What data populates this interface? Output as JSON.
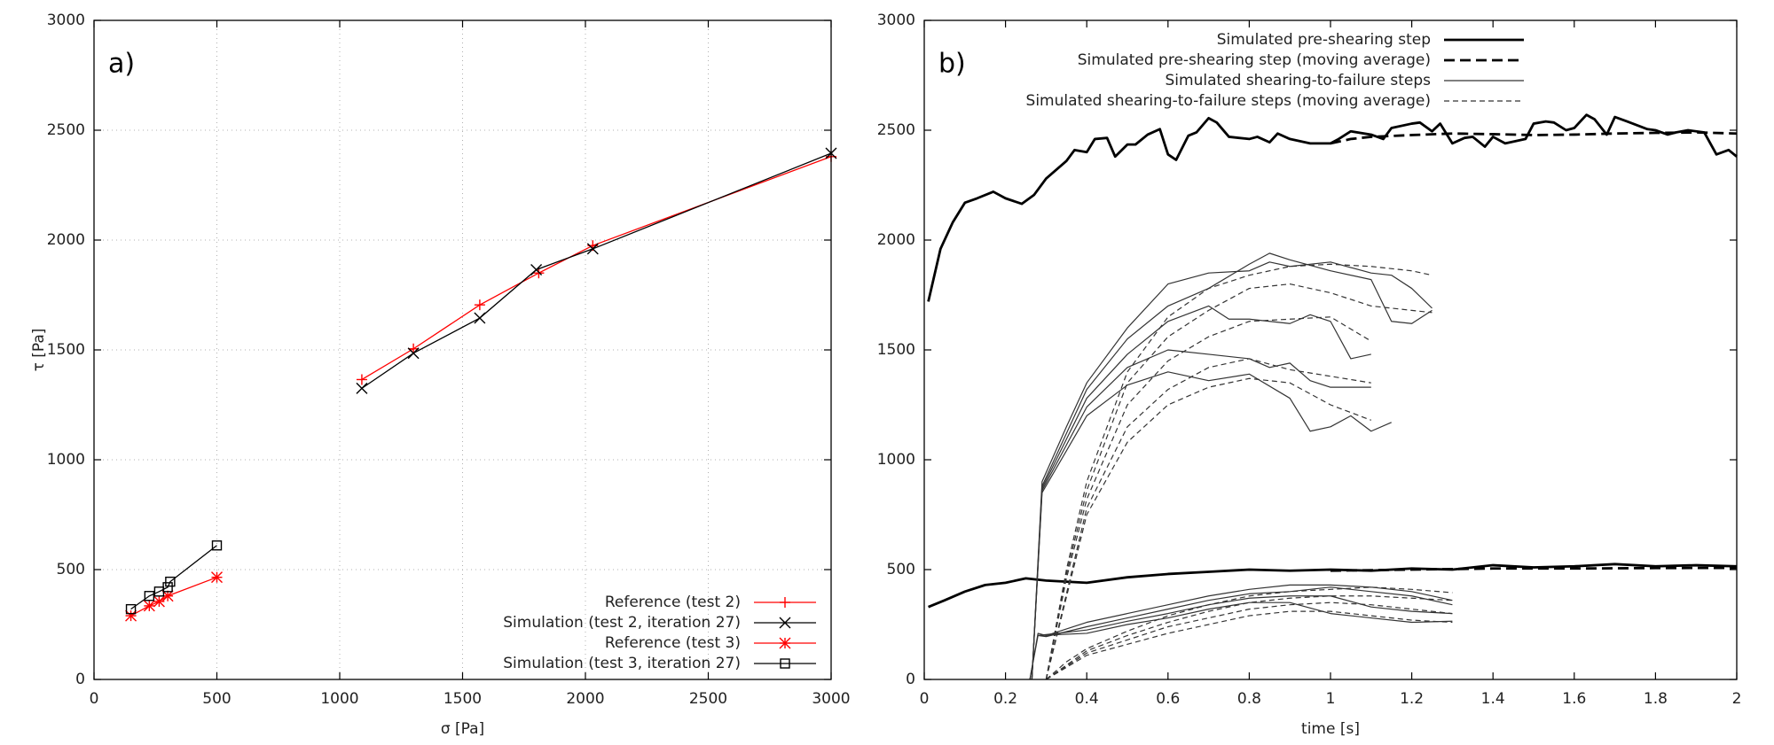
{
  "chart_data": [
    {
      "type": "line",
      "annotation": "a)",
      "x_label": "σ [Pa]",
      "y_label": "τ [Pa]",
      "xlim": [
        0,
        3000
      ],
      "xticks": [
        0,
        500,
        1000,
        1500,
        2000,
        2500,
        3000
      ],
      "ylim": [
        0,
        3000
      ],
      "yticks": [
        0,
        500,
        1000,
        1500,
        2000,
        2500,
        3000
      ],
      "grid": true,
      "legend": "bottom-right",
      "series": [
        {
          "name": "Reference (test 2)",
          "color": "#ff0000",
          "marker": "plus",
          "x": [
            1090,
            1300,
            1570,
            1810,
            2030,
            3000
          ],
          "values": [
            1365,
            1505,
            1705,
            1850,
            1975,
            2380
          ]
        },
        {
          "name": "Simulation (test 2, iteration 27)",
          "color": "#000000",
          "marker": "cross",
          "x": [
            1090,
            1300,
            1570,
            1800,
            2030,
            3000
          ],
          "values": [
            1325,
            1485,
            1645,
            1865,
            1960,
            2395
          ]
        },
        {
          "name": "Reference (test 3)",
          "color": "#ff0000",
          "marker": "star",
          "x": [
            150,
            225,
            265,
            300,
            500
          ],
          "values": [
            290,
            335,
            355,
            380,
            465
          ]
        },
        {
          "name": "Simulation (test 3, iteration 27)",
          "color": "#000000",
          "marker": "square",
          "x": [
            150,
            225,
            265,
            300,
            310,
            500
          ],
          "values": [
            320,
            380,
            400,
            420,
            445,
            610
          ]
        }
      ]
    },
    {
      "type": "line",
      "annotation": "b)",
      "x_label": "time [s]",
      "xlim": [
        0,
        2
      ],
      "xticks": [
        0,
        0.2,
        0.4,
        0.6,
        0.8,
        1,
        1.2,
        1.4,
        1.6,
        1.8,
        2
      ],
      "ylim": [
        0,
        3000
      ],
      "yticks": [
        0,
        500,
        1000,
        1500,
        2000,
        2500,
        3000
      ],
      "grid": false,
      "legend": "top-right",
      "series": [
        {
          "name": "Simulated pre-shearing step",
          "color": "#000000",
          "line_style": "solid",
          "line_weight": "bold",
          "lines": [
            {
              "x": [
                0.01,
                0.04,
                0.07,
                0.1,
                0.13,
                0.17,
                0.2,
                0.24,
                0.27,
                0.3,
                0.35,
                0.37,
                0.4,
                0.42,
                0.45,
                0.47,
                0.5,
                0.52,
                0.55,
                0.58,
                0.6,
                0.62,
                0.65,
                0.67,
                0.7,
                0.72,
                0.75,
                0.8,
                0.82,
                0.85,
                0.87,
                0.9,
                0.95,
                1.0,
                1.02,
                1.05,
                1.1,
                1.13,
                1.15,
                1.2,
                1.22,
                1.25,
                1.27,
                1.3,
                1.33,
                1.35,
                1.38,
                1.4,
                1.43,
                1.48,
                1.5,
                1.53,
                1.55,
                1.58,
                1.6,
                1.63,
                1.65,
                1.68,
                1.7,
                1.73,
                1.78,
                1.8,
                1.83,
                1.85,
                1.88,
                1.92,
                1.95,
                1.98,
                2.0
              ],
              "values": [
                1720,
                1960,
                2080,
                2170,
                2190,
                2220,
                2190,
                2165,
                2205,
                2280,
                2360,
                2410,
                2400,
                2460,
                2465,
                2380,
                2435,
                2435,
                2480,
                2505,
                2390,
                2365,
                2475,
                2490,
                2555,
                2535,
                2470,
                2460,
                2470,
                2445,
                2485,
                2460,
                2440,
                2440,
                2460,
                2495,
                2480,
                2460,
                2510,
                2530,
                2535,
                2495,
                2530,
                2440,
                2465,
                2470,
                2425,
                2470,
                2440,
                2460,
                2530,
                2540,
                2535,
                2500,
                2510,
                2570,
                2550,
                2480,
                2560,
                2540,
                2505,
                2500,
                2480,
                2490,
                2500,
                2490,
                2390,
                2410,
                2380
              ]
            },
            {
              "x": [
                0.01,
                0.05,
                0.1,
                0.15,
                0.2,
                0.25,
                0.3,
                0.35,
                0.4,
                0.5,
                0.6,
                0.7,
                0.8,
                0.9,
                1.0,
                1.1,
                1.2,
                1.3,
                1.4,
                1.5,
                1.6,
                1.7,
                1.8,
                1.9,
                2.0
              ],
              "values": [
                330,
                360,
                400,
                430,
                440,
                460,
                450,
                445,
                440,
                465,
                480,
                490,
                500,
                495,
                500,
                495,
                505,
                500,
                520,
                510,
                515,
                525,
                515,
                520,
                515
              ]
            }
          ]
        },
        {
          "name": "Simulated pre-shearing step (moving average)",
          "color": "#000000",
          "line_style": "dashed",
          "line_weight": "bold",
          "lines": [
            {
              "x": [
                1.0,
                1.05,
                1.1,
                1.2,
                1.3,
                1.4,
                1.5,
                1.6,
                1.7,
                1.8,
                1.9,
                2.0
              ],
              "values": [
                2440,
                2460,
                2470,
                2478,
                2485,
                2482,
                2478,
                2480,
                2485,
                2488,
                2490,
                2485
              ]
            },
            {
              "x": [
                1.0,
                1.2,
                1.4,
                1.6,
                1.8,
                2.0
              ],
              "values": [
                495,
                500,
                505,
                505,
                507,
                508
              ]
            }
          ]
        },
        {
          "name": "Simulated shearing-to-failure steps",
          "color": "#333333",
          "line_style": "solid",
          "line_weight": "normal",
          "lines": [
            {
              "x": [
                0.265,
                0.29,
                0.35,
                0.4,
                0.5,
                0.6,
                0.7,
                0.8,
                0.85,
                0.9,
                1.0,
                1.1,
                1.15,
                1.2,
                1.25
              ],
              "values": [
                0,
                900,
                1150,
                1350,
                1600,
                1800,
                1850,
                1860,
                1900,
                1880,
                1900,
                1850,
                1840,
                1780,
                1690
              ]
            },
            {
              "x": [
                0.265,
                0.29,
                0.4,
                0.5,
                0.6,
                0.7,
                0.8,
                0.85,
                0.9,
                1.0,
                1.1,
                1.15,
                1.2,
                1.25
              ],
              "values": [
                0,
                880,
                1320,
                1550,
                1700,
                1780,
                1890,
                1940,
                1910,
                1860,
                1820,
                1630,
                1620,
                1680
              ]
            },
            {
              "x": [
                0.265,
                0.29,
                0.4,
                0.5,
                0.6,
                0.7,
                0.75,
                0.8,
                0.9,
                0.95,
                1.0,
                1.05,
                1.1
              ],
              "values": [
                0,
                870,
                1280,
                1480,
                1630,
                1700,
                1640,
                1640,
                1620,
                1660,
                1630,
                1460,
                1480
              ]
            },
            {
              "x": [
                0.265,
                0.29,
                0.4,
                0.5,
                0.6,
                0.7,
                0.8,
                0.85,
                0.9,
                0.95,
                1.0,
                1.1
              ],
              "values": [
                0,
                860,
                1240,
                1420,
                1500,
                1480,
                1460,
                1420,
                1440,
                1360,
                1330,
                1330
              ]
            },
            {
              "x": [
                0.265,
                0.29,
                0.4,
                0.5,
                0.6,
                0.7,
                0.8,
                0.9,
                0.95,
                1.0,
                1.05,
                1.1,
                1.15
              ],
              "values": [
                0,
                850,
                1200,
                1340,
                1400,
                1360,
                1390,
                1280,
                1130,
                1150,
                1200,
                1130,
                1170
              ]
            },
            {
              "x": [
                0.26,
                0.28,
                0.3,
                0.4,
                0.5,
                0.6,
                0.7,
                0.8,
                0.9,
                1.0,
                1.1,
                1.2,
                1.3
              ],
              "values": [
                0,
                210,
                200,
                260,
                300,
                340,
                380,
                410,
                430,
                430,
                420,
                400,
                360
              ]
            },
            {
              "x": [
                0.26,
                0.28,
                0.3,
                0.4,
                0.5,
                0.6,
                0.7,
                0.8,
                0.9,
                1.0,
                1.1,
                1.2,
                1.3
              ],
              "values": [
                0,
                200,
                195,
                240,
                280,
                320,
                360,
                390,
                400,
                420,
                400,
                380,
                340
              ]
            },
            {
              "x": [
                0.28,
                0.4,
                0.5,
                0.6,
                0.7,
                0.8,
                0.9,
                1.0,
                1.1,
                1.2,
                1.3
              ],
              "values": [
                200,
                225,
                265,
                300,
                340,
                370,
                380,
                380,
                330,
                310,
                300
              ]
            },
            {
              "x": [
                0.28,
                0.4,
                0.5,
                0.6,
                0.7,
                0.8,
                0.9,
                1.0,
                1.1,
                1.2,
                1.3
              ],
              "values": [
                200,
                210,
                250,
                280,
                320,
                350,
                350,
                300,
                280,
                260,
                265
              ]
            }
          ]
        },
        {
          "name": "Simulated shearing-to-failure steps (moving average)",
          "color": "#333333",
          "line_style": "dashed",
          "line_weight": "normal",
          "lines": [
            {
              "x": [
                0.3,
                0.35,
                0.4,
                0.5,
                0.6,
                0.7,
                0.8,
                0.9,
                1.0,
                1.1,
                1.2,
                1.25
              ],
              "values": [
                0,
                500,
                900,
                1400,
                1650,
                1780,
                1840,
                1880,
                1890,
                1880,
                1860,
                1840
              ]
            },
            {
              "x": [
                0.3,
                0.35,
                0.4,
                0.5,
                0.6,
                0.7,
                0.8,
                0.9,
                1.0,
                1.1,
                1.25
              ],
              "values": [
                0,
                480,
                860,
                1350,
                1560,
                1680,
                1780,
                1800,
                1760,
                1700,
                1670
              ]
            },
            {
              "x": [
                0.3,
                0.35,
                0.4,
                0.5,
                0.6,
                0.7,
                0.8,
                0.9,
                1.0,
                1.1
              ],
              "values": [
                0,
                460,
                820,
                1250,
                1450,
                1560,
                1630,
                1640,
                1650,
                1540
              ]
            },
            {
              "x": [
                0.3,
                0.4,
                0.5,
                0.6,
                0.7,
                0.8,
                0.9,
                1.0,
                1.1
              ],
              "values": [
                0,
                780,
                1150,
                1320,
                1420,
                1460,
                1410,
                1380,
                1350
              ]
            },
            {
              "x": [
                0.3,
                0.4,
                0.5,
                0.6,
                0.7,
                0.8,
                0.9,
                1.0,
                1.1
              ],
              "values": [
                0,
                750,
                1080,
                1250,
                1330,
                1370,
                1350,
                1250,
                1180
              ]
            },
            {
              "x": [
                0.3,
                0.35,
                0.4,
                0.5,
                0.6,
                0.7,
                0.8,
                0.9,
                1.0,
                1.1,
                1.2,
                1.3
              ],
              "values": [
                0,
                80,
                140,
                220,
                290,
                340,
                380,
                400,
                410,
                420,
                410,
                395
              ]
            },
            {
              "x": [
                0.3,
                0.4,
                0.5,
                0.6,
                0.7,
                0.8,
                0.9,
                1.0,
                1.1,
                1.2,
                1.3
              ],
              "values": [
                0,
                130,
                200,
                260,
                310,
                350,
                370,
                380,
                380,
                370,
                360
              ]
            },
            {
              "x": [
                0.3,
                0.4,
                0.5,
                0.6,
                0.7,
                0.8,
                0.9,
                1.0,
                1.1,
                1.2,
                1.3
              ],
              "values": [
                0,
                120,
                180,
                240,
                280,
                320,
                340,
                350,
                340,
                320,
                300
              ]
            },
            {
              "x": [
                0.3,
                0.4,
                0.5,
                0.6,
                0.7,
                0.8,
                0.9,
                1.0,
                1.1,
                1.2,
                1.3
              ],
              "values": [
                0,
                110,
                160,
                210,
                250,
                290,
                310,
                310,
                290,
                270,
                260
              ]
            }
          ]
        }
      ]
    }
  ]
}
